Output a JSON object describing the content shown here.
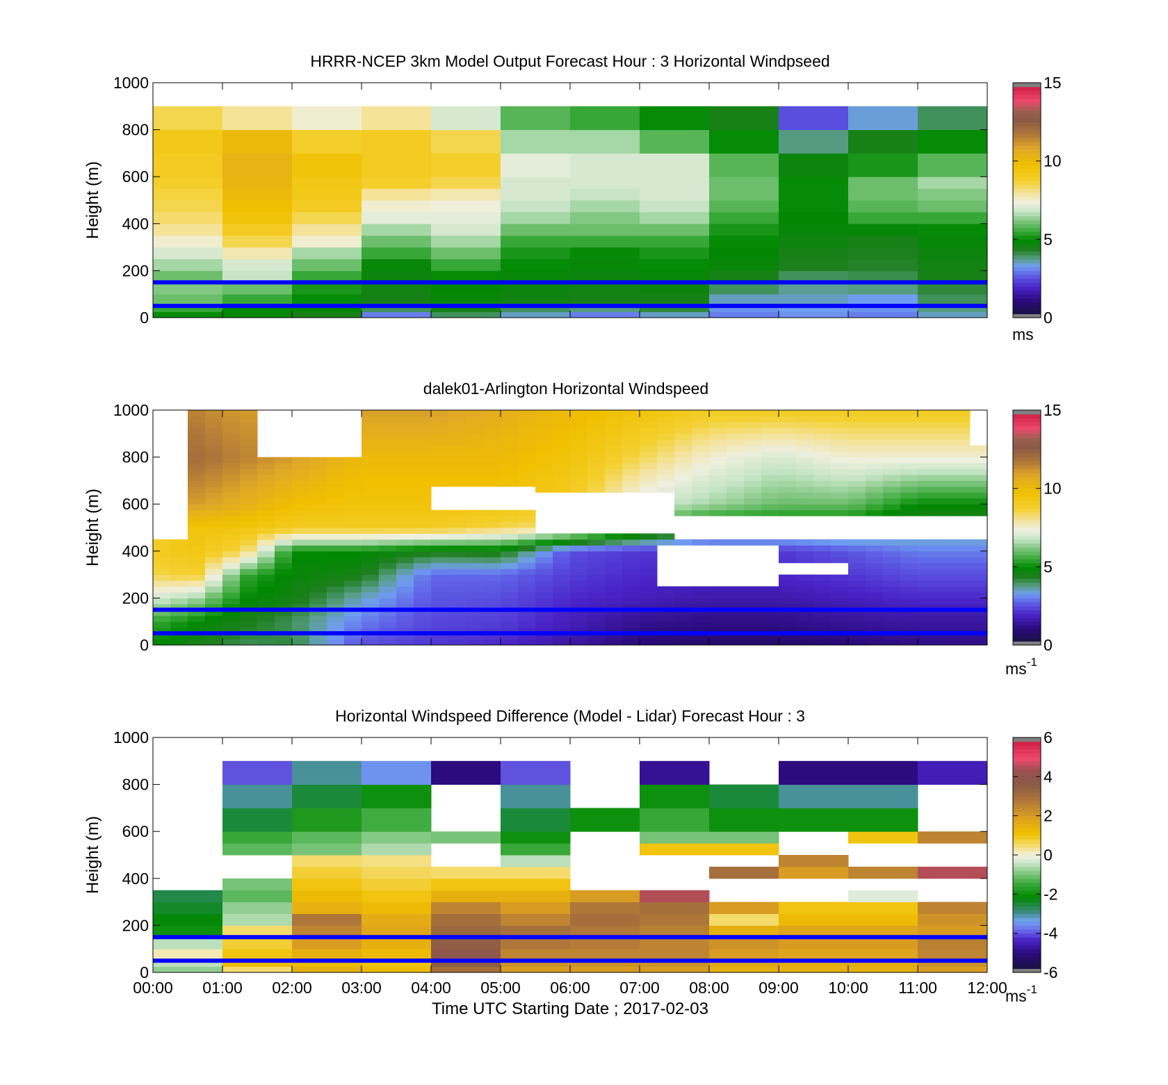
{
  "figure": {
    "xlabel": "Time UTC  Starting Date ; 2017-02-03",
    "x_tick_labels": [
      "00:00",
      "01:00",
      "02:00",
      "03:00",
      "04:00",
      "05:00",
      "06:00",
      "07:00",
      "08:00",
      "09:00",
      "10:00",
      "11:00",
      "12:00"
    ]
  },
  "chart_data": [
    {
      "id": "model",
      "type": "heatmap",
      "title": "HRRR-NCEP 3km Model Output   Forecast Hour : 3 Horizontal Windpseed",
      "ylabel": "Height (m)",
      "unit": "ms",
      "unit_sup": "",
      "xlim": [
        0,
        12
      ],
      "ylim": [
        0,
        1000
      ],
      "y_ticks": [
        "0",
        "200",
        "400",
        "600",
        "800",
        "1000"
      ],
      "colorbar": {
        "min": 0,
        "max": 15,
        "ticks": [
          "0",
          "5",
          "10",
          "15"
        ],
        "palette": "speed"
      },
      "x_hours": [
        0,
        1,
        2,
        3,
        4,
        5,
        6,
        7,
        8,
        9,
        10,
        11
      ],
      "height_bins_m": [
        0,
        25,
        50,
        100,
        150,
        200,
        250,
        300,
        350,
        400,
        450,
        500,
        550,
        600,
        700,
        800,
        900,
        1000
      ],
      "values": [
        [
          5.0,
          5.5,
          6.0,
          6.2,
          6.0,
          6.5,
          7.0,
          7.5,
          8.0,
          8.3,
          8.5,
          8.6,
          8.8,
          9.0,
          9.2,
          8.5
        ],
        [
          4.8,
          5.0,
          5.5,
          6.0,
          6.8,
          7.0,
          7.8,
          8.5,
          9.0,
          9.5,
          9.8,
          10.0,
          10.2,
          10.3,
          10.0,
          8.0
        ],
        [
          4.5,
          4.8,
          5.0,
          5.2,
          5.5,
          6.0,
          6.5,
          7.5,
          8.0,
          8.5,
          9.0,
          9.2,
          9.3,
          9.5,
          8.8,
          7.5
        ],
        [
          3.0,
          4.0,
          4.5,
          4.6,
          4.7,
          4.8,
          5.5,
          6.0,
          6.5,
          7.2,
          7.5,
          8.0,
          8.8,
          9.0,
          9.0,
          8.0
        ],
        [
          4.0,
          4.5,
          4.8,
          4.9,
          5.0,
          5.5,
          6.0,
          6.5,
          7.0,
          7.2,
          7.4,
          7.8,
          8.5,
          8.8,
          8.5,
          7.0
        ],
        [
          3.5,
          4.0,
          4.6,
          4.7,
          4.8,
          5.0,
          5.2,
          5.5,
          6.0,
          6.5,
          6.8,
          7.0,
          7.0,
          7.2,
          6.5,
          5.8
        ],
        [
          3.0,
          3.8,
          4.5,
          4.6,
          4.7,
          4.8,
          5.0,
          5.5,
          6.0,
          6.2,
          6.5,
          6.8,
          7.0,
          7.0,
          6.5,
          5.5
        ],
        [
          3.5,
          4.2,
          4.5,
          4.7,
          4.8,
          5.0,
          5.2,
          5.5,
          6.0,
          6.5,
          6.8,
          7.0,
          7.0,
          7.0,
          5.8,
          5.0
        ],
        [
          3.0,
          3.2,
          3.5,
          4.0,
          4.5,
          4.8,
          4.9,
          5.0,
          5.2,
          5.5,
          5.8,
          6.0,
          6.0,
          5.8,
          5.0,
          4.5
        ],
        [
          3.2,
          3.3,
          3.5,
          3.7,
          4.0,
          4.4,
          4.5,
          4.7,
          4.8,
          4.9,
          5.0,
          5.0,
          5.0,
          4.7,
          3.8,
          2.5
        ],
        [
          3.0,
          3.2,
          3.3,
          3.8,
          4.1,
          4.3,
          4.4,
          4.5,
          4.8,
          5.5,
          5.8,
          6.0,
          6.0,
          5.2,
          4.5,
          3.4
        ],
        [
          3.5,
          3.8,
          4.0,
          4.2,
          4.5,
          4.6,
          4.7,
          4.8,
          5.0,
          5.5,
          6.0,
          6.2,
          6.5,
          5.8,
          5.0,
          4.0
        ]
      ]
    },
    {
      "id": "lidar",
      "type": "heatmap",
      "title": "dalek01-Arlington  Horizontal Windspeed",
      "ylabel": "Height (m)",
      "unit": "ms",
      "unit_sup": "-1",
      "xlim": [
        0,
        12
      ],
      "ylim": [
        0,
        1000
      ],
      "y_ticks": [
        "0",
        "200",
        "400",
        "600",
        "800",
        "1000"
      ],
      "colorbar": {
        "min": 0,
        "max": 15,
        "ticks": [
          "0",
          "5",
          "10",
          "15"
        ],
        "palette": "speed"
      },
      "profile_step_minutes": 15,
      "keyframes": [
        {
          "hour": 0.0,
          "h": [
            0,
            100,
            200,
            300,
            400,
            500,
            600,
            800,
            1000
          ],
          "v": [
            5.0,
            5.5,
            7.0,
            8.5,
            9.0,
            8.5,
            8.0,
            6.0,
            null
          ]
        },
        {
          "hour": 0.6,
          "h": [
            0,
            100,
            200,
            300,
            400,
            500,
            600,
            800,
            1000
          ],
          "v": [
            4.5,
            5.0,
            6.5,
            8.8,
            9.3,
            9.5,
            11.0,
            12.0,
            11.5
          ]
        },
        {
          "hour": 1.3,
          "h": [
            0,
            100,
            200,
            300,
            400,
            500,
            600,
            800,
            1000
          ],
          "v": [
            4.0,
            4.5,
            5.0,
            5.5,
            8.5,
            9.5,
            10.5,
            11.5,
            11.0
          ]
        },
        {
          "hour": 2.0,
          "h": [
            0,
            100,
            200,
            300,
            400,
            500,
            600,
            800,
            1000
          ],
          "v": [
            4.2,
            4.0,
            4.6,
            4.8,
            5.0,
            9.0,
            9.8,
            11.0,
            11.5
          ]
        },
        {
          "hour": 3.0,
          "h": [
            0,
            100,
            200,
            300,
            400,
            500,
            600,
            800,
            1000
          ],
          "v": [
            2.5,
            3.0,
            3.5,
            4.5,
            5.0,
            9.0,
            9.5,
            10.0,
            11.0
          ]
        },
        {
          "hour": 4.0,
          "h": [
            0,
            100,
            200,
            300,
            400,
            500,
            600,
            800,
            1000
          ],
          "v": [
            2.2,
            2.4,
            2.6,
            2.8,
            4.5,
            9.0,
            9.5,
            10.0,
            11.0
          ]
        },
        {
          "hour": 5.0,
          "h": [
            0,
            100,
            200,
            300,
            400,
            500,
            600,
            800,
            1000
          ],
          "v": [
            2.0,
            2.3,
            2.5,
            2.8,
            4.6,
            8.5,
            9.5,
            10.0,
            10.5
          ]
        },
        {
          "hour": 6.0,
          "h": [
            0,
            100,
            200,
            300,
            400,
            500,
            600,
            800,
            1000
          ],
          "v": [
            1.5,
            1.8,
            2.0,
            2.3,
            2.5,
            8.0,
            9.0,
            9.5,
            10.0
          ]
        },
        {
          "hour": 7.0,
          "h": [
            0,
            100,
            200,
            300,
            400,
            500,
            600,
            800,
            1000
          ],
          "v": [
            1.0,
            1.3,
            1.8,
            2.0,
            2.2,
            6.0,
            7.0,
            8.5,
            9.5
          ]
        },
        {
          "hour": 8.0,
          "h": [
            0,
            100,
            200,
            300,
            400,
            500,
            600,
            800,
            1000
          ],
          "v": [
            0.8,
            1.2,
            1.6,
            2.0,
            2.2,
            4.5,
            6.5,
            7.5,
            9.0
          ]
        },
        {
          "hour": 9.0,
          "h": [
            0,
            100,
            200,
            300,
            400,
            500,
            600,
            800,
            1000
          ],
          "v": [
            0.8,
            1.2,
            1.6,
            2.0,
            2.2,
            4.5,
            6.0,
            7.0,
            9.0
          ]
        },
        {
          "hour": 10.0,
          "h": [
            0,
            100,
            200,
            300,
            400,
            500,
            600,
            800,
            1000
          ],
          "v": [
            1.0,
            1.4,
            1.8,
            2.2,
            2.6,
            4.5,
            6.0,
            7.5,
            9.0
          ]
        },
        {
          "hour": 11.0,
          "h": [
            0,
            100,
            200,
            300,
            400,
            500,
            600,
            800,
            1000
          ],
          "v": [
            1.2,
            1.5,
            2.0,
            2.5,
            3.0,
            4.0,
            5.0,
            7.5,
            9.0
          ]
        },
        {
          "hour": 12.0,
          "h": [
            0,
            100,
            200,
            300,
            400,
            500,
            600,
            800,
            1000
          ],
          "v": [
            1.2,
            1.5,
            2.0,
            2.5,
            3.0,
            4.0,
            5.0,
            7.5,
            9.0
          ]
        }
      ],
      "data_gaps_m": [
        {
          "from_hour": 0.0,
          "to_hour": 0.6,
          "h": [
            450,
            1000
          ]
        },
        {
          "from_hour": 1.5,
          "to_hour": 3.0,
          "h": [
            800,
            1000
          ]
        },
        {
          "from_hour": 4.0,
          "to_hour": 5.5,
          "h": [
            580,
            680
          ]
        },
        {
          "from_hour": 5.5,
          "to_hour": 7.5,
          "h": [
            480,
            640
          ]
        },
        {
          "from_hour": 7.5,
          "to_hour": 12.0,
          "h": [
            440,
            560
          ]
        },
        {
          "from_hour": 7.3,
          "to_hour": 9.0,
          "h": [
            250,
            420
          ]
        },
        {
          "from_hour": 9.0,
          "to_hour": 10.0,
          "h": [
            300,
            360
          ]
        },
        {
          "from_hour": 11.8,
          "to_hour": 12.0,
          "h": [
            850,
            1000
          ]
        }
      ]
    },
    {
      "id": "difference",
      "type": "heatmap",
      "title": "Horizontal Windspeed Difference (Model - Lidar) Forecast Hour : 3",
      "ylabel": "Height (m)",
      "unit": "ms",
      "unit_sup": "-1",
      "xlim": [
        0,
        12
      ],
      "ylim": [
        0,
        1000
      ],
      "y_ticks": [
        "0",
        "200",
        "400",
        "600",
        "800",
        "1000"
      ],
      "colorbar": {
        "min": -6,
        "max": 6,
        "ticks": [
          "-6",
          "-4",
          "-2",
          "0",
          "2",
          "4",
          "6"
        ],
        "palette": "diff"
      },
      "height_bins_m": [
        0,
        25,
        50,
        100,
        150,
        200,
        250,
        300,
        350,
        400,
        450,
        500,
        550,
        600,
        700,
        800,
        900,
        1000
      ],
      "values": [
        [
          -0.8,
          -0.5,
          0.2,
          -0.5,
          -2.0,
          -2.2,
          -2.4,
          -2.6,
          null,
          null,
          null,
          null,
          null,
          null,
          null,
          null
        ],
        [
          0.5,
          1.2,
          1.0,
          0.8,
          0.5,
          -0.6,
          -0.8,
          -1.2,
          -1.0,
          null,
          null,
          -1.2,
          -1.5,
          -2.5,
          -3.0,
          -4.0
        ],
        [
          1.5,
          1.2,
          1.5,
          2.0,
          2.5,
          2.8,
          1.5,
          1.2,
          1.0,
          0.8,
          0.5,
          -1.0,
          -1.2,
          -1.8,
          -2.5,
          -3.0
        ],
        [
          1.2,
          1.0,
          1.2,
          1.5,
          1.8,
          1.6,
          1.2,
          1.0,
          0.8,
          0.6,
          0.4,
          -0.6,
          -0.9,
          -1.4,
          -2.0,
          -3.5
        ],
        [
          3.0,
          3.5,
          3.8,
          3.5,
          3.2,
          3.0,
          2.5,
          1.5,
          1.0,
          0.5,
          null,
          null,
          -1.0,
          null,
          null,
          -5.0
        ],
        [
          2.0,
          2.2,
          2.5,
          2.8,
          3.0,
          2.5,
          2.0,
          1.5,
          1.0,
          0.5,
          -0.5,
          -1.5,
          -2.0,
          -2.5,
          -3.0,
          -4.0
        ],
        [
          2.0,
          2.2,
          2.5,
          2.7,
          2.8,
          3.0,
          2.8,
          2.0,
          null,
          null,
          null,
          null,
          null,
          -2.0,
          null,
          null
        ],
        [
          2.0,
          2.2,
          2.5,
          2.5,
          2.6,
          2.8,
          3.0,
          4.5,
          null,
          null,
          null,
          1.0,
          -1.0,
          -1.5,
          -2.0,
          -4.8
        ],
        [
          1.5,
          1.8,
          2.0,
          2.2,
          1.5,
          0.5,
          2.0,
          null,
          null,
          3.0,
          null,
          1.0,
          -1.0,
          -2.0,
          -2.5,
          null
        ],
        [
          1.5,
          1.6,
          1.8,
          2.0,
          1.8,
          1.2,
          1.0,
          null,
          null,
          2.0,
          2.5,
          null,
          null,
          -2.0,
          -3.0,
          -5.0
        ],
        [
          1.5,
          1.6,
          1.8,
          2.0,
          1.8,
          1.2,
          1.0,
          -0.2,
          null,
          2.5,
          null,
          null,
          1.0,
          -2.0,
          -3.0,
          -5.0
        ],
        [
          2.0,
          2.2,
          2.5,
          2.6,
          2.0,
          2.2,
          2.5,
          null,
          null,
          4.5,
          null,
          null,
          2.5,
          null,
          null,
          -4.5
        ]
      ]
    }
  ],
  "reference_lines_m": [
    50,
    150
  ],
  "reference_line_color": "#0000ff"
}
